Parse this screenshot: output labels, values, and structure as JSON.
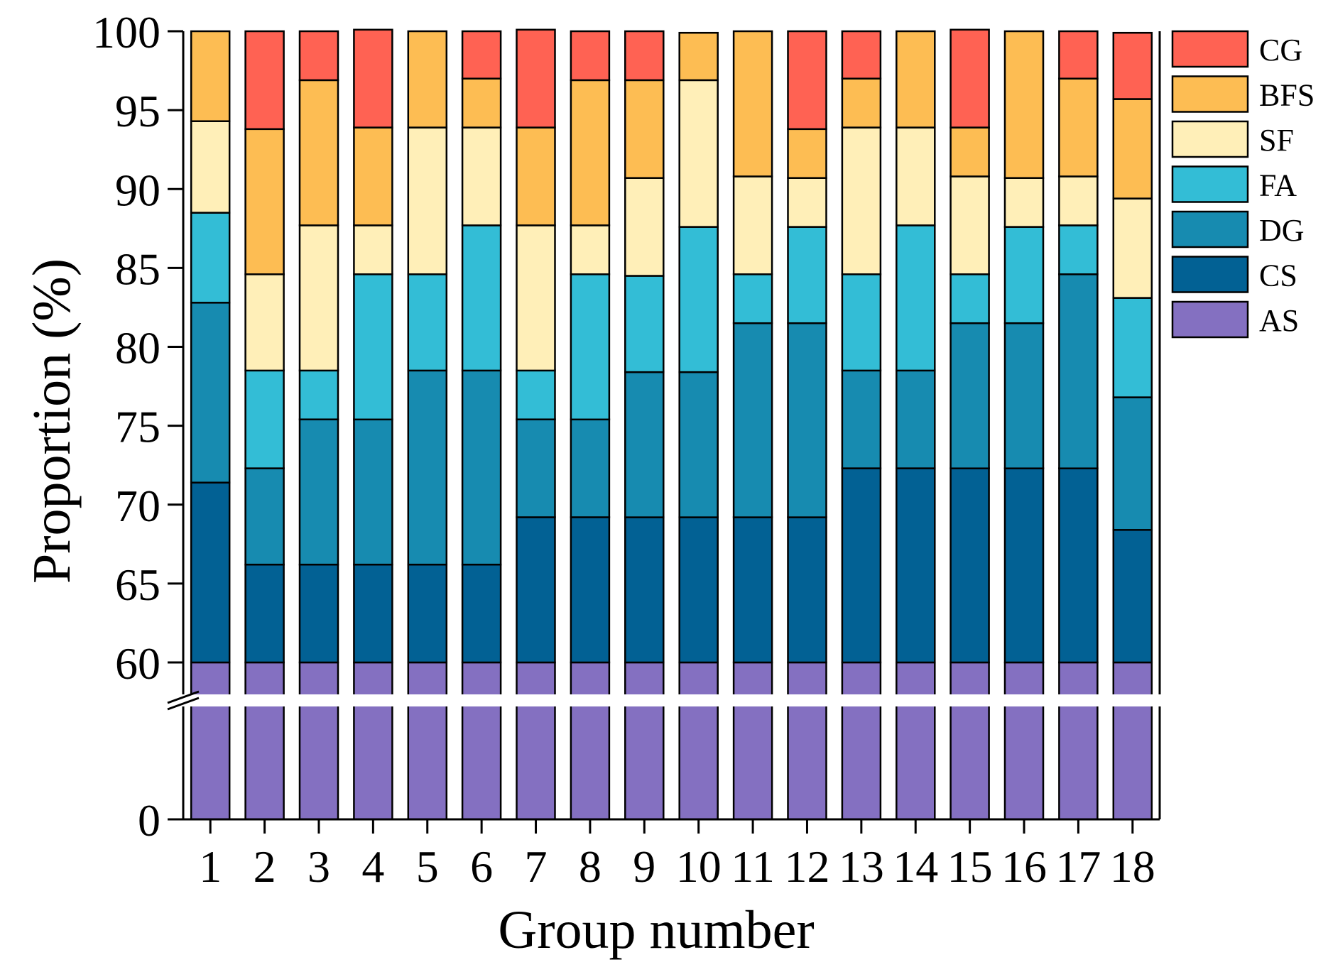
{
  "chart_data": {
    "type": "bar",
    "stacked": true,
    "xlabel": "Group number",
    "ylabel": "Proportion (%)",
    "ylim": [
      0,
      100
    ],
    "axis_break": [
      0,
      60
    ],
    "yticks": [
      0,
      60,
      65,
      70,
      75,
      80,
      85,
      90,
      95,
      100
    ],
    "categories": [
      "1",
      "2",
      "3",
      "4",
      "5",
      "6",
      "7",
      "8",
      "9",
      "10",
      "11",
      "12",
      "13",
      "14",
      "15",
      "16",
      "17",
      "18"
    ],
    "series": [
      {
        "name": "AS",
        "color": "#8470C1",
        "values": [
          60,
          60,
          60,
          60,
          60,
          60,
          60,
          60,
          60,
          60,
          60,
          60,
          60,
          60,
          60,
          60,
          60,
          60
        ]
      },
      {
        "name": "CS",
        "color": "#026194",
        "values": [
          11.4,
          6.2,
          6.2,
          6.2,
          6.2,
          6.2,
          9.2,
          9.2,
          9.2,
          9.2,
          9.2,
          9.2,
          12.3,
          12.3,
          12.3,
          12.3,
          12.3,
          8.4
        ]
      },
      {
        "name": "DG",
        "color": "#178BB0",
        "values": [
          11.4,
          6.1,
          9.2,
          9.2,
          12.3,
          12.3,
          6.2,
          6.2,
          9.2,
          9.2,
          12.3,
          12.3,
          6.2,
          6.2,
          9.2,
          9.2,
          12.3,
          8.4
        ]
      },
      {
        "name": "FA",
        "color": "#33BDD6",
        "values": [
          5.7,
          6.2,
          3.1,
          9.2,
          6.1,
          9.2,
          3.1,
          9.2,
          6.1,
          9.2,
          3.1,
          6.1,
          6.1,
          9.2,
          3.1,
          6.1,
          3.1,
          6.3
        ]
      },
      {
        "name": "SF",
        "color": "#FFEFB8",
        "values": [
          5.8,
          6.1,
          9.2,
          3.1,
          9.3,
          6.2,
          9.2,
          3.1,
          6.2,
          9.3,
          6.2,
          3.1,
          9.3,
          6.2,
          6.2,
          3.1,
          3.1,
          6.3
        ]
      },
      {
        "name": "BFS",
        "color": "#FDBD53",
        "values": [
          5.7,
          9.2,
          9.2,
          6.2,
          6.1,
          3.1,
          6.2,
          9.2,
          6.2,
          3.0,
          9.2,
          3.1,
          3.1,
          6.1,
          3.1,
          9.3,
          6.2,
          6.3
        ]
      },
      {
        "name": "CG",
        "color": "#FF6253",
        "values": [
          0,
          6.2,
          3.1,
          6.2,
          0,
          3.0,
          6.2,
          3.1,
          3.1,
          0,
          0,
          6.2,
          3.0,
          0,
          6.2,
          0,
          3.0,
          4.2
        ]
      }
    ],
    "legend_order": [
      "CG",
      "BFS",
      "SF",
      "FA",
      "DG",
      "CS",
      "AS"
    ],
    "legend_position": "right"
  }
}
